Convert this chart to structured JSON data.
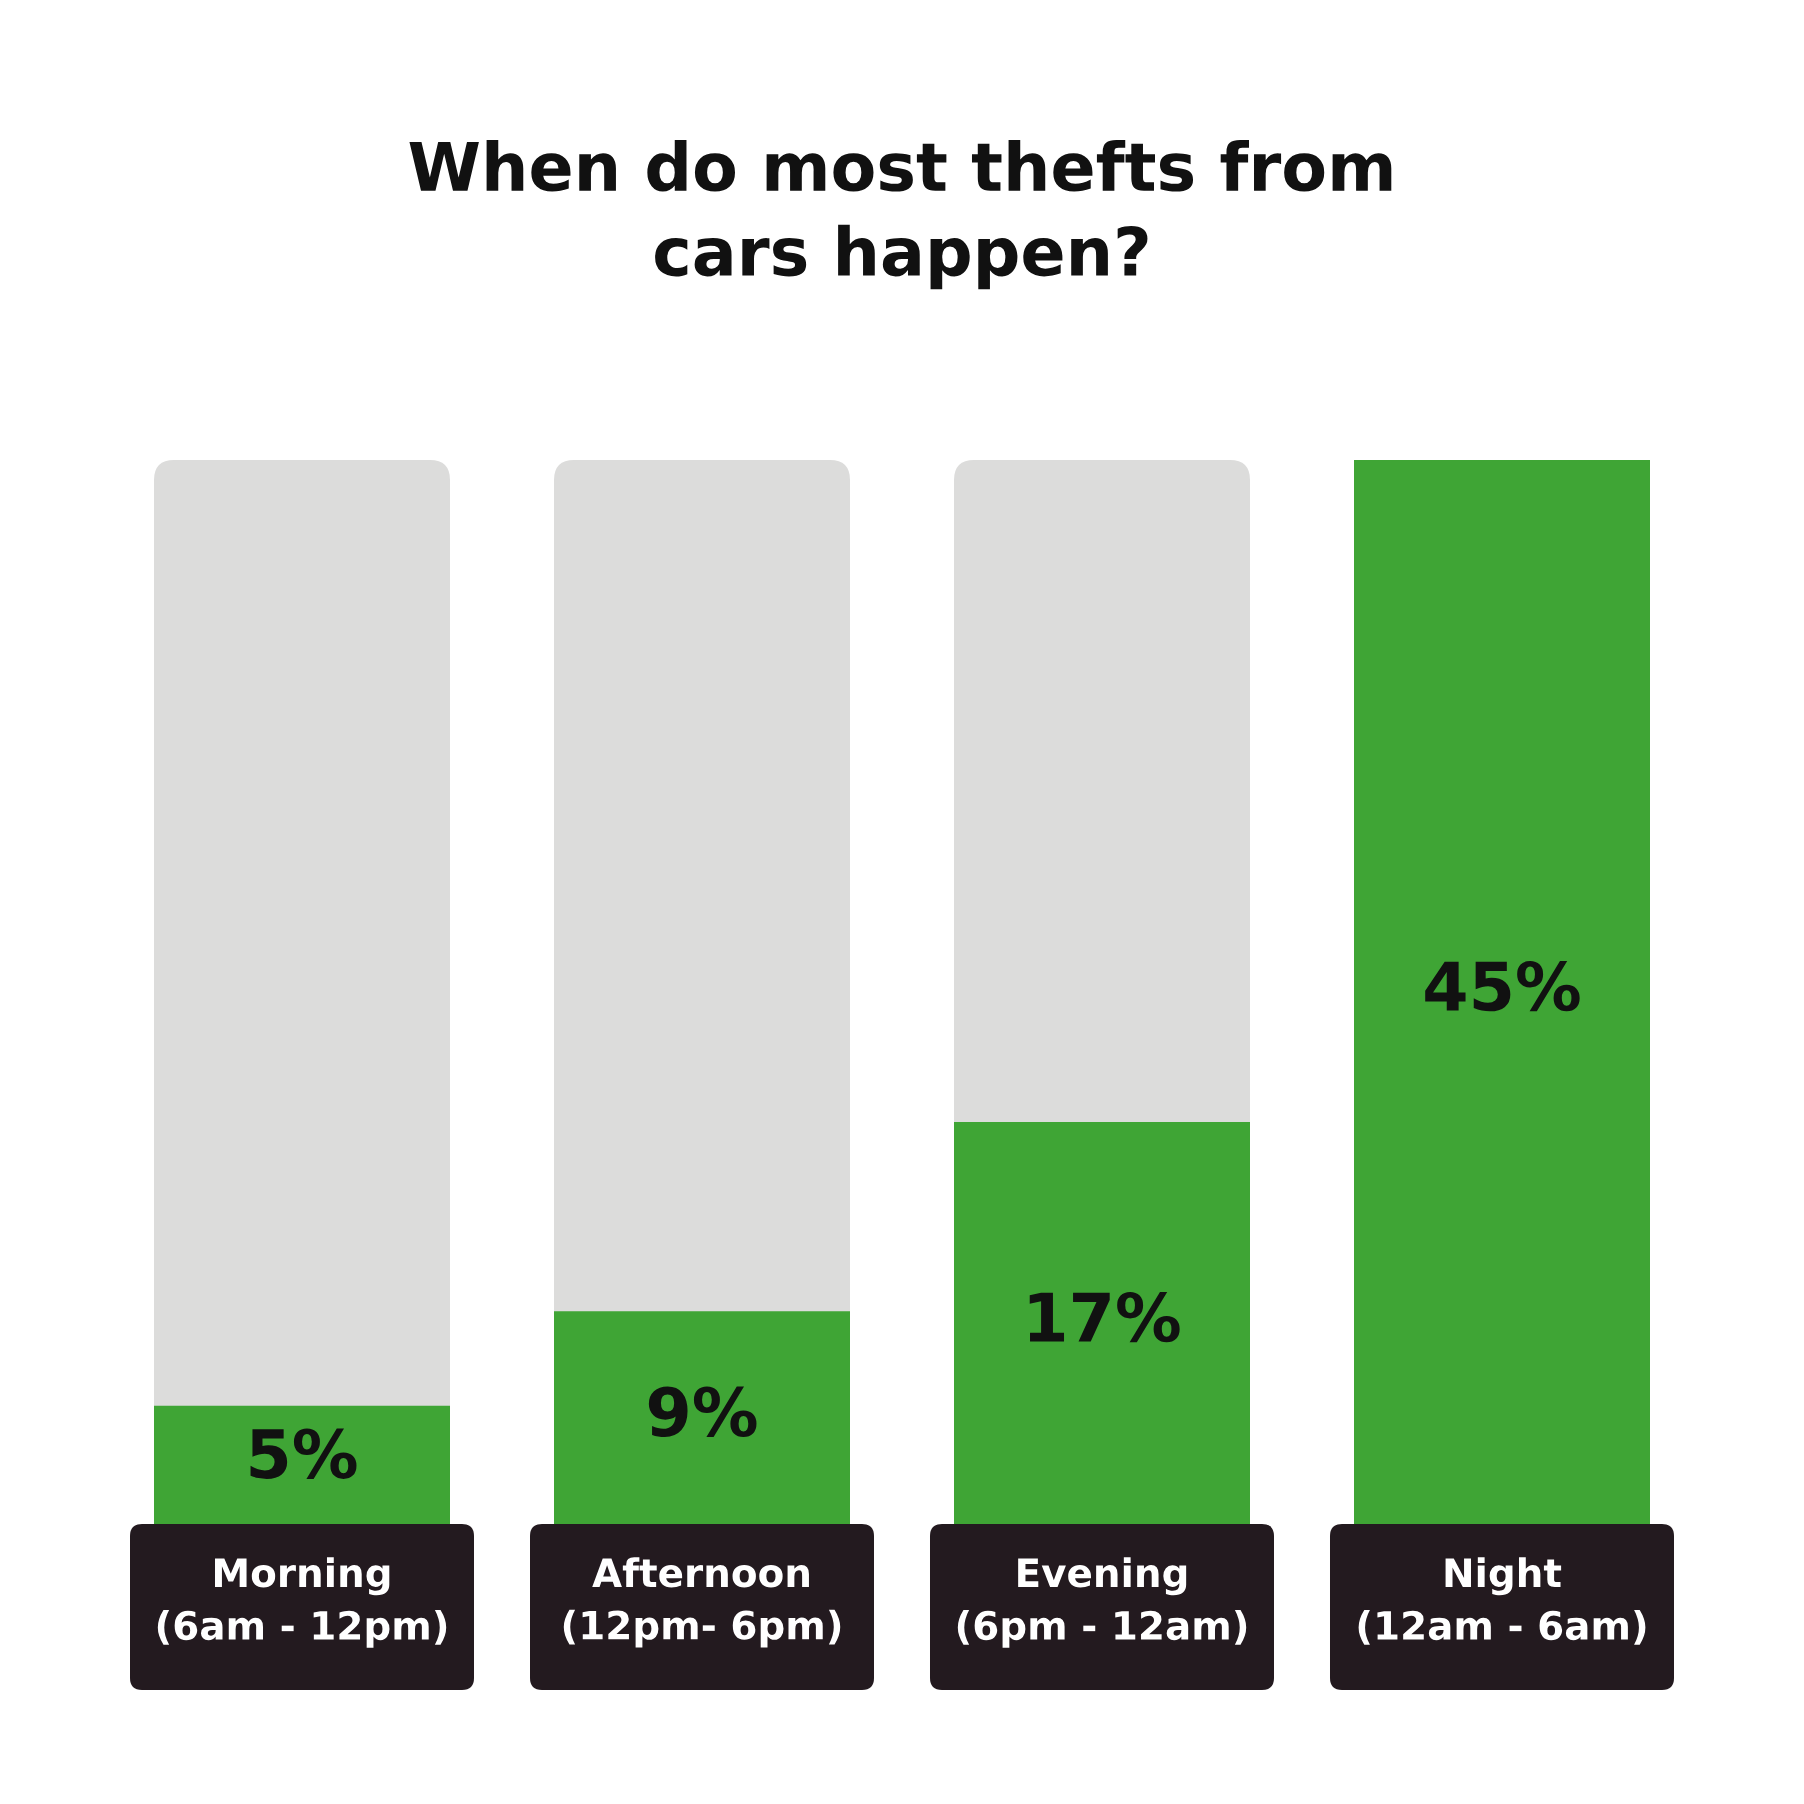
{
  "chart_data": {
    "type": "bar",
    "title": "When do most thefts from\ncars happen?",
    "categories": [
      "Morning\n(6am - 12pm)",
      "Afternoon\n(12pm- 6pm)",
      "Evening\n(6pm - 12am)",
      "Night\n(12am - 6am)"
    ],
    "values": [
      5,
      9,
      17,
      45
    ],
    "color": "#3fa535",
    "value_labels": [
      "5%",
      "9%",
      "17%",
      "45%"
    ],
    "ylim": [
      0,
      45
    ],
    "tick_labels": "x",
    "grid": false,
    "legend": false
  }
}
